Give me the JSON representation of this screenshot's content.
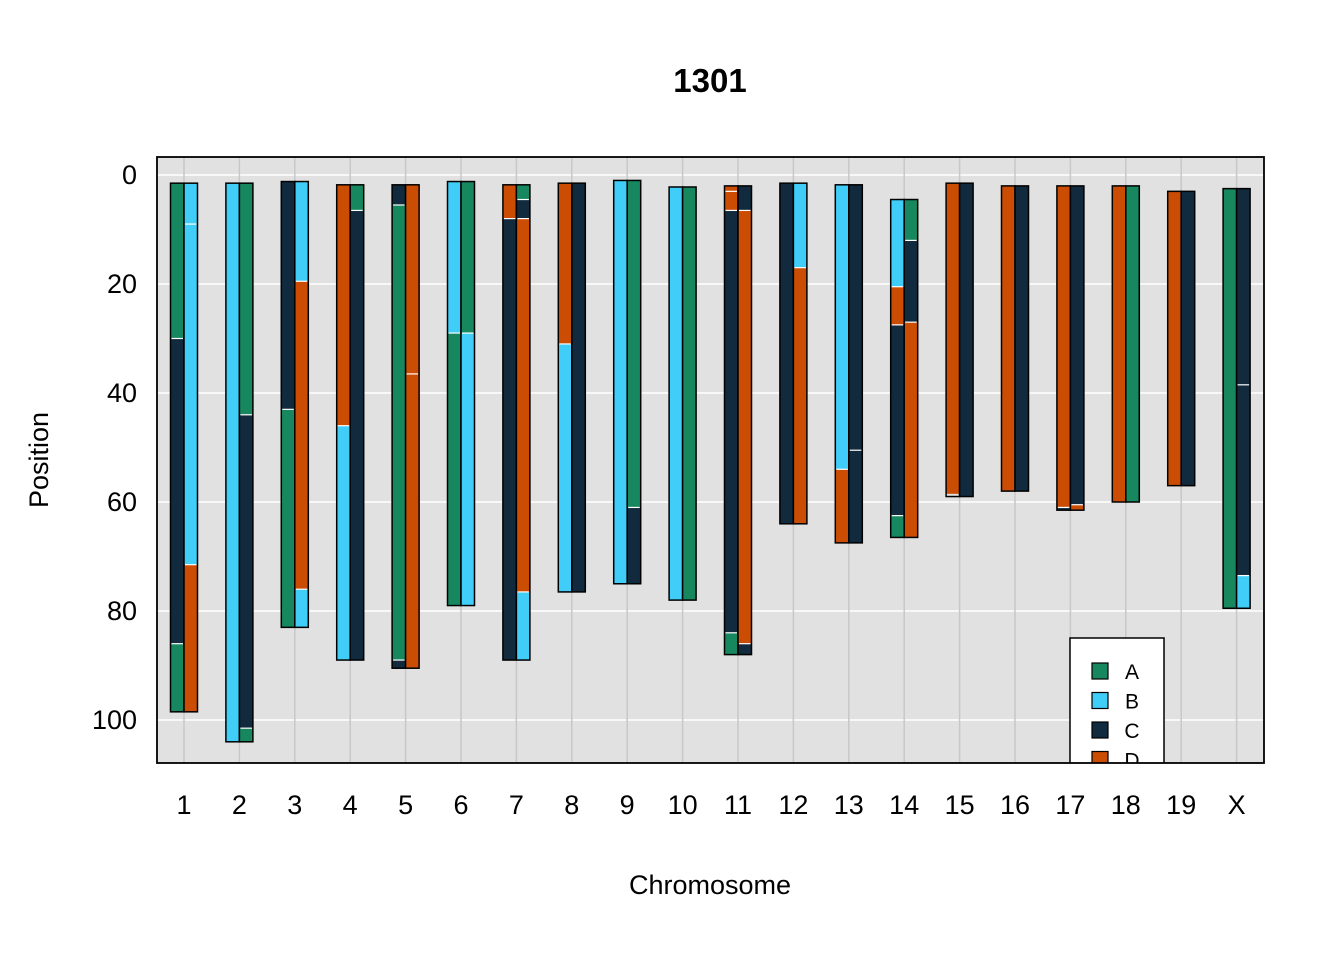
{
  "chart_data": {
    "type": "bar",
    "title": "1301",
    "xlabel": "Chromosome",
    "ylabel": "Position",
    "ylim": [
      0,
      108
    ],
    "y_axis_reversed": true,
    "yticks": [
      0,
      20,
      40,
      60,
      80,
      100
    ],
    "categories": [
      "1",
      "2",
      "3",
      "4",
      "5",
      "6",
      "7",
      "8",
      "9",
      "10",
      "11",
      "12",
      "13",
      "14",
      "15",
      "16",
      "17",
      "18",
      "19",
      "X"
    ],
    "grid": true,
    "legend_position": "bottom-right",
    "legend": [
      {
        "key": "A",
        "label": "A",
        "color": "#17875F"
      },
      {
        "key": "B",
        "label": "B",
        "color": "#40CDF7"
      },
      {
        "key": "C",
        "label": "C",
        "color": "#112A3D"
      },
      {
        "key": "D",
        "label": "D",
        "color": "#CB4D04"
      }
    ],
    "chromosomes": [
      {
        "name": "1",
        "strands": [
          {
            "start": 1.5,
            "end": 98.5,
            "segments": [
              {
                "from": 1.5,
                "to": 30,
                "g": "A"
              },
              {
                "from": 30,
                "to": 86,
                "g": "C"
              },
              {
                "from": 86,
                "to": 98.5,
                "g": "A"
              }
            ]
          },
          {
            "start": 1.5,
            "end": 98.5,
            "segments": [
              {
                "from": 1.5,
                "to": 9,
                "g": "B"
              },
              {
                "from": 9,
                "to": 71.5,
                "g": "B"
              },
              {
                "from": 71.5,
                "to": 98.5,
                "g": "D"
              }
            ]
          }
        ]
      },
      {
        "name": "2",
        "strands": [
          {
            "start": 1.5,
            "end": 104,
            "segments": [
              {
                "from": 1.5,
                "to": 104,
                "g": "B"
              }
            ]
          },
          {
            "start": 1.5,
            "end": 104,
            "segments": [
              {
                "from": 1.5,
                "to": 44,
                "g": "A"
              },
              {
                "from": 44,
                "to": 101.5,
                "g": "C"
              },
              {
                "from": 101.5,
                "to": 104,
                "g": "A"
              }
            ]
          }
        ]
      },
      {
        "name": "3",
        "strands": [
          {
            "start": 1.2,
            "end": 83,
            "segments": [
              {
                "from": 1.2,
                "to": 43,
                "g": "C"
              },
              {
                "from": 43,
                "to": 83,
                "g": "A"
              }
            ]
          },
          {
            "start": 1.2,
            "end": 83,
            "segments": [
              {
                "from": 1.2,
                "to": 19.5,
                "g": "B"
              },
              {
                "from": 19.5,
                "to": 76,
                "g": "D"
              },
              {
                "from": 76,
                "to": 83,
                "g": "B"
              }
            ]
          }
        ]
      },
      {
        "name": "4",
        "strands": [
          {
            "start": 1.8,
            "end": 89,
            "segments": [
              {
                "from": 1.8,
                "to": 46,
                "g": "D"
              },
              {
                "from": 46,
                "to": 89,
                "g": "B"
              }
            ]
          },
          {
            "start": 1.8,
            "end": 89,
            "segments": [
              {
                "from": 1.8,
                "to": 6.5,
                "g": "A"
              },
              {
                "from": 6.5,
                "to": 89,
                "g": "C"
              }
            ]
          }
        ]
      },
      {
        "name": "5",
        "strands": [
          {
            "start": 1.8,
            "end": 90.5,
            "segments": [
              {
                "from": 1.8,
                "to": 5.5,
                "g": "C"
              },
              {
                "from": 5.5,
                "to": 89,
                "g": "A"
              },
              {
                "from": 89,
                "to": 90.5,
                "g": "C"
              }
            ]
          },
          {
            "start": 1.8,
            "end": 90.5,
            "segments": [
              {
                "from": 1.8,
                "to": 36.5,
                "g": "D"
              },
              {
                "from": 36.5,
                "to": 90.5,
                "g": "D"
              }
            ]
          }
        ]
      },
      {
        "name": "6",
        "strands": [
          {
            "start": 1.2,
            "end": 79,
            "segments": [
              {
                "from": 1.2,
                "to": 29,
                "g": "B"
              },
              {
                "from": 29,
                "to": 79,
                "g": "A"
              }
            ]
          },
          {
            "start": 1.2,
            "end": 79,
            "segments": [
              {
                "from": 1.2,
                "to": 29,
                "g": "A"
              },
              {
                "from": 29,
                "to": 79,
                "g": "B"
              }
            ]
          }
        ]
      },
      {
        "name": "7",
        "strands": [
          {
            "start": 1.8,
            "end": 89,
            "segments": [
              {
                "from": 1.8,
                "to": 8,
                "g": "D"
              },
              {
                "from": 8,
                "to": 89,
                "g": "C"
              }
            ]
          },
          {
            "start": 1.8,
            "end": 89,
            "segments": [
              {
                "from": 1.8,
                "to": 4.5,
                "g": "A"
              },
              {
                "from": 4.5,
                "to": 8,
                "g": "C"
              },
              {
                "from": 8,
                "to": 76.5,
                "g": "D"
              },
              {
                "from": 76.5,
                "to": 89,
                "g": "B"
              }
            ]
          }
        ]
      },
      {
        "name": "8",
        "strands": [
          {
            "start": 1.5,
            "end": 76.5,
            "segments": [
              {
                "from": 1.5,
                "to": 31,
                "g": "D"
              },
              {
                "from": 31,
                "to": 76.5,
                "g": "B"
              }
            ]
          },
          {
            "start": 1.5,
            "end": 76.5,
            "segments": [
              {
                "from": 1.5,
                "to": 76.5,
                "g": "C"
              }
            ]
          }
        ]
      },
      {
        "name": "9",
        "strands": [
          {
            "start": 1,
            "end": 75,
            "segments": [
              {
                "from": 1,
                "to": 75,
                "g": "B"
              }
            ]
          },
          {
            "start": 1,
            "end": 75,
            "segments": [
              {
                "from": 1,
                "to": 61,
                "g": "A"
              },
              {
                "from": 61,
                "to": 75,
                "g": "C"
              }
            ]
          }
        ]
      },
      {
        "name": "10",
        "strands": [
          {
            "start": 2.2,
            "end": 78,
            "segments": [
              {
                "from": 2.2,
                "to": 78,
                "g": "B"
              }
            ]
          },
          {
            "start": 2.2,
            "end": 78,
            "segments": [
              {
                "from": 2.2,
                "to": 78,
                "g": "A"
              }
            ]
          }
        ]
      },
      {
        "name": "11",
        "strands": [
          {
            "start": 2,
            "end": 88,
            "segments": [
              {
                "from": 2,
                "to": 3,
                "g": "D"
              },
              {
                "from": 3,
                "to": 6.5,
                "g": "D"
              },
              {
                "from": 6.5,
                "to": 84,
                "g": "C"
              },
              {
                "from": 84,
                "to": 88,
                "g": "A"
              }
            ]
          },
          {
            "start": 2,
            "end": 88,
            "segments": [
              {
                "from": 2,
                "to": 6.5,
                "g": "C"
              },
              {
                "from": 6.5,
                "to": 86,
                "g": "D"
              },
              {
                "from": 86,
                "to": 88,
                "g": "C"
              }
            ]
          }
        ]
      },
      {
        "name": "12",
        "strands": [
          {
            "start": 1.5,
            "end": 64,
            "segments": [
              {
                "from": 1.5,
                "to": 64,
                "g": "C"
              }
            ]
          },
          {
            "start": 1.5,
            "end": 64,
            "segments": [
              {
                "from": 1.5,
                "to": 17,
                "g": "B"
              },
              {
                "from": 17,
                "to": 64,
                "g": "D"
              }
            ]
          }
        ]
      },
      {
        "name": "13",
        "strands": [
          {
            "start": 1.8,
            "end": 67.5,
            "segments": [
              {
                "from": 1.8,
                "to": 54,
                "g": "B"
              },
              {
                "from": 54,
                "to": 67.5,
                "g": "D"
              }
            ]
          },
          {
            "start": 1.8,
            "end": 67.5,
            "segments": [
              {
                "from": 1.8,
                "to": 50.5,
                "g": "C"
              },
              {
                "from": 50.5,
                "to": 67.5,
                "g": "C"
              }
            ]
          }
        ]
      },
      {
        "name": "14",
        "strands": [
          {
            "start": 4.5,
            "end": 66.5,
            "segments": [
              {
                "from": 4.5,
                "to": 20.5,
                "g": "B"
              },
              {
                "from": 20.5,
                "to": 27.5,
                "g": "D"
              },
              {
                "from": 27.5,
                "to": 62.5,
                "g": "C"
              },
              {
                "from": 62.5,
                "to": 66.5,
                "g": "A"
              }
            ]
          },
          {
            "start": 4.5,
            "end": 66.5,
            "segments": [
              {
                "from": 4.5,
                "to": 12,
                "g": "A"
              },
              {
                "from": 12,
                "to": 27,
                "g": "C"
              },
              {
                "from": 27,
                "to": 66.5,
                "g": "D"
              }
            ]
          }
        ]
      },
      {
        "name": "15",
        "strands": [
          {
            "start": 1.5,
            "end": 59,
            "segments": [
              {
                "from": 1.5,
                "to": 58.5,
                "g": "D"
              }
            ]
          },
          {
            "start": 1.5,
            "end": 59,
            "segments": [
              {
                "from": 1.5,
                "to": 59,
                "g": "C"
              }
            ]
          }
        ]
      },
      {
        "name": "16",
        "strands": [
          {
            "start": 2,
            "end": 58,
            "segments": [
              {
                "from": 2,
                "to": 58,
                "g": "D"
              }
            ]
          },
          {
            "start": 2,
            "end": 58,
            "segments": [
              {
                "from": 2,
                "to": 58,
                "g": "C"
              }
            ]
          }
        ]
      },
      {
        "name": "17",
        "strands": [
          {
            "start": 2,
            "end": 61.5,
            "segments": [
              {
                "from": 2,
                "to": 61,
                "g": "D"
              },
              {
                "from": 61,
                "to": 61.5,
                "g": "C"
              }
            ]
          },
          {
            "start": 2,
            "end": 61.5,
            "segments": [
              {
                "from": 2,
                "to": 60.5,
                "g": "C"
              },
              {
                "from": 60.5,
                "to": 61.5,
                "g": "D"
              }
            ]
          }
        ]
      },
      {
        "name": "18",
        "strands": [
          {
            "start": 2,
            "end": 60,
            "segments": [
              {
                "from": 2,
                "to": 60,
                "g": "D"
              }
            ]
          },
          {
            "start": 2,
            "end": 60,
            "segments": [
              {
                "from": 2,
                "to": 60,
                "g": "A"
              }
            ]
          }
        ]
      },
      {
        "name": "19",
        "strands": [
          {
            "start": 3,
            "end": 57,
            "segments": [
              {
                "from": 3,
                "to": 57,
                "g": "D"
              }
            ]
          },
          {
            "start": 3,
            "end": 57,
            "segments": [
              {
                "from": 3,
                "to": 57,
                "g": "C"
              }
            ]
          }
        ]
      },
      {
        "name": "X",
        "strands": [
          {
            "start": 2.5,
            "end": 79.5,
            "segments": [
              {
                "from": 2.5,
                "to": 79.5,
                "g": "A"
              }
            ]
          },
          {
            "start": 2.5,
            "end": 79.5,
            "segments": [
              {
                "from": 2.5,
                "to": 38.5,
                "g": "C"
              },
              {
                "from": 38.5,
                "to": 73.5,
                "g": "C"
              },
              {
                "from": 73.5,
                "to": 79.5,
                "g": "B"
              }
            ]
          }
        ]
      }
    ]
  }
}
